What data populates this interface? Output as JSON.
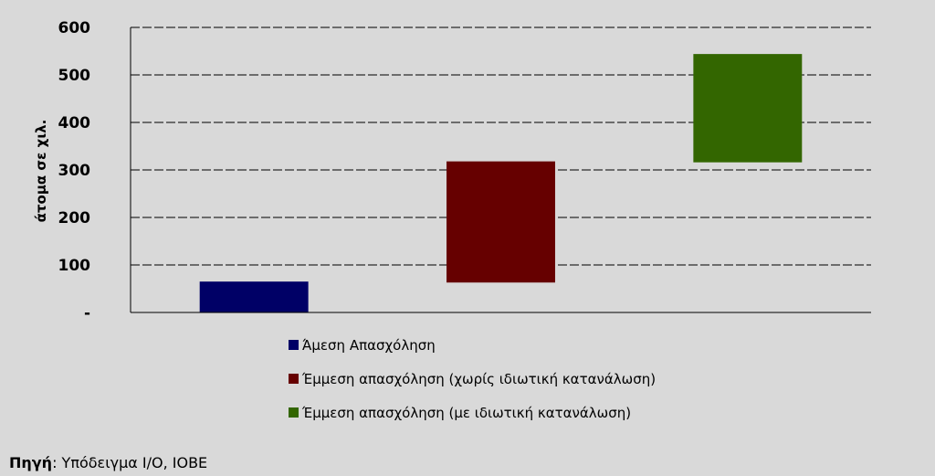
{
  "chart_data": {
    "type": "bar",
    "subtype": "floating-waterfall",
    "ylabel": "άτομα σε χιλ.",
    "ylim": [
      0,
      600
    ],
    "yticks": [
      0,
      100,
      200,
      300,
      400,
      500,
      600
    ],
    "ytick_labels": [
      "-",
      "100",
      "200",
      "300",
      "400",
      "500",
      "600"
    ],
    "grid": true,
    "grid_style": "dashed",
    "legend_position": "bottom",
    "series": [
      {
        "name": "Άμεση Απασχόληση",
        "bottom": 0,
        "top": 65,
        "color": "#000066"
      },
      {
        "name": "Έμμεση απασχόληση (χωρίς ιδιωτική κατανάλωση)",
        "bottom": 63,
        "top": 318,
        "color": "#660000"
      },
      {
        "name": "Έμμεση απασχόληση (με ιδιωτική κατανάλωση)",
        "bottom": 316,
        "top": 544,
        "color": "#336600"
      }
    ]
  },
  "source": {
    "label": "Πηγή",
    "separator": ":",
    "text": " Υπόδειγμα I/O, IOBE"
  }
}
